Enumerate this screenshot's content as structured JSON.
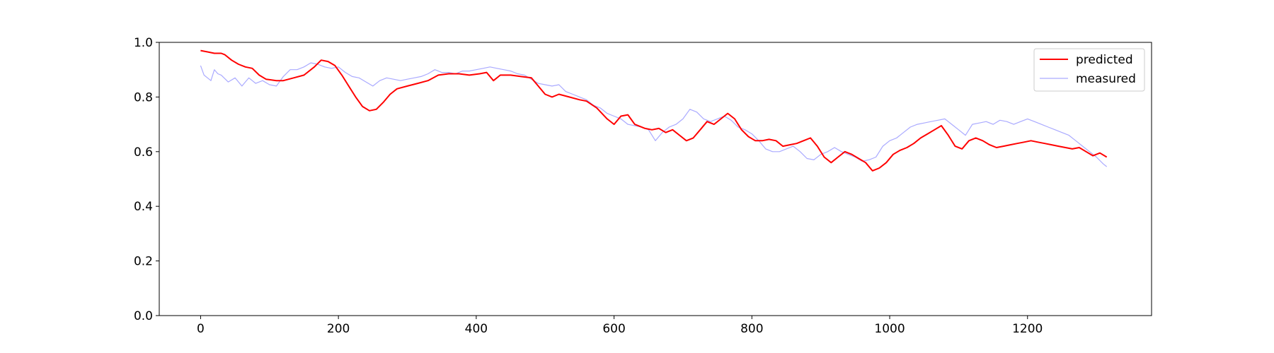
{
  "chart_data": {
    "type": "line",
    "title": "",
    "xlabel": "",
    "ylabel": "",
    "xlim": [
      -60,
      1380
    ],
    "ylim": [
      0.0,
      1.0
    ],
    "xticks": [
      0,
      200,
      400,
      600,
      800,
      1000,
      1200
    ],
    "yticks": [
      0.0,
      0.2,
      0.4,
      0.6,
      0.8,
      1.0
    ],
    "xtick_labels": [
      "0",
      "200",
      "400",
      "600",
      "800",
      "1000",
      "1200"
    ],
    "ytick_labels": [
      "0.0",
      "0.2",
      "0.4",
      "0.6",
      "0.8",
      "1.0"
    ],
    "grid": false,
    "legend_position": "top-right",
    "series": [
      {
        "name": "predicted",
        "color": "#ff0000",
        "x": [
          0,
          10,
          20,
          30,
          35,
          45,
          55,
          65,
          75,
          85,
          95,
          110,
          120,
          135,
          150,
          165,
          175,
          185,
          195,
          205,
          215,
          225,
          235,
          245,
          255,
          265,
          275,
          285,
          300,
          315,
          330,
          345,
          360,
          375,
          390,
          405,
          415,
          425,
          435,
          450,
          465,
          480,
          490,
          500,
          510,
          520,
          535,
          550,
          560,
          575,
          590,
          600,
          610,
          620,
          630,
          645,
          655,
          665,
          675,
          685,
          695,
          705,
          715,
          725,
          735,
          745,
          755,
          765,
          775,
          785,
          795,
          805,
          815,
          825,
          835,
          845,
          855,
          865,
          875,
          885,
          895,
          905,
          915,
          925,
          935,
          945,
          955,
          965,
          975,
          985,
          995,
          1005,
          1015,
          1025,
          1035,
          1045,
          1055,
          1065,
          1075,
          1085,
          1095,
          1105,
          1115,
          1125,
          1135,
          1145,
          1155,
          1165,
          1175,
          1185,
          1195,
          1205,
          1215,
          1225,
          1235,
          1245,
          1255,
          1265,
          1275,
          1285,
          1295,
          1305,
          1315
        ],
        "y": [
          0.97,
          0.965,
          0.96,
          0.96,
          0.955,
          0.935,
          0.92,
          0.91,
          0.905,
          0.88,
          0.865,
          0.86,
          0.86,
          0.87,
          0.88,
          0.91,
          0.935,
          0.93,
          0.915,
          0.88,
          0.84,
          0.8,
          0.765,
          0.75,
          0.755,
          0.78,
          0.81,
          0.83,
          0.84,
          0.85,
          0.86,
          0.88,
          0.885,
          0.885,
          0.88,
          0.885,
          0.89,
          0.86,
          0.88,
          0.88,
          0.875,
          0.87,
          0.84,
          0.81,
          0.8,
          0.81,
          0.8,
          0.79,
          0.785,
          0.76,
          0.72,
          0.7,
          0.73,
          0.735,
          0.7,
          0.685,
          0.68,
          0.685,
          0.67,
          0.68,
          0.66,
          0.64,
          0.65,
          0.68,
          0.71,
          0.7,
          0.72,
          0.74,
          0.72,
          0.68,
          0.655,
          0.64,
          0.64,
          0.645,
          0.64,
          0.62,
          0.625,
          0.63,
          0.64,
          0.65,
          0.62,
          0.58,
          0.56,
          0.58,
          0.6,
          0.59,
          0.575,
          0.56,
          0.53,
          0.54,
          0.56,
          0.59,
          0.605,
          0.615,
          0.63,
          0.65,
          0.665,
          0.68,
          0.695,
          0.66,
          0.62,
          0.61,
          0.64,
          0.65,
          0.64,
          0.625,
          0.615,
          0.62,
          0.625,
          0.63,
          0.635,
          0.64,
          0.635,
          0.63,
          0.625,
          0.62,
          0.615,
          0.61,
          0.615,
          0.6,
          0.585,
          0.595,
          0.58
        ]
      },
      {
        "name": "measured",
        "color": "#aaaaff",
        "x": [
          0,
          5,
          10,
          15,
          20,
          25,
          30,
          40,
          50,
          60,
          70,
          80,
          90,
          100,
          110,
          120,
          130,
          140,
          150,
          160,
          170,
          180,
          190,
          200,
          210,
          220,
          230,
          240,
          250,
          260,
          270,
          280,
          290,
          300,
          310,
          320,
          330,
          340,
          350,
          360,
          370,
          380,
          390,
          400,
          410,
          420,
          430,
          440,
          450,
          460,
          470,
          480,
          490,
          500,
          510,
          520,
          530,
          540,
          550,
          560,
          570,
          580,
          590,
          600,
          610,
          620,
          630,
          640,
          650,
          660,
          670,
          680,
          690,
          700,
          710,
          720,
          730,
          740,
          750,
          760,
          770,
          780,
          790,
          800,
          810,
          820,
          830,
          840,
          850,
          860,
          870,
          880,
          890,
          900,
          910,
          920,
          930,
          940,
          950,
          960,
          970,
          980,
          990,
          1000,
          1010,
          1020,
          1030,
          1040,
          1050,
          1060,
          1070,
          1080,
          1090,
          1100,
          1110,
          1120,
          1130,
          1140,
          1150,
          1160,
          1170,
          1180,
          1190,
          1200,
          1210,
          1220,
          1230,
          1240,
          1250,
          1260,
          1270,
          1280,
          1290,
          1300,
          1310,
          1315
        ],
        "y": [
          0.915,
          0.88,
          0.87,
          0.86,
          0.9,
          0.885,
          0.88,
          0.855,
          0.87,
          0.84,
          0.87,
          0.85,
          0.86,
          0.845,
          0.84,
          0.875,
          0.9,
          0.9,
          0.91,
          0.925,
          0.92,
          0.91,
          0.905,
          0.91,
          0.89,
          0.875,
          0.87,
          0.855,
          0.84,
          0.86,
          0.87,
          0.865,
          0.86,
          0.865,
          0.87,
          0.875,
          0.885,
          0.9,
          0.89,
          0.89,
          0.885,
          0.895,
          0.895,
          0.9,
          0.905,
          0.91,
          0.905,
          0.9,
          0.895,
          0.885,
          0.88,
          0.865,
          0.85,
          0.845,
          0.84,
          0.845,
          0.82,
          0.81,
          0.8,
          0.79,
          0.77,
          0.76,
          0.74,
          0.73,
          0.72,
          0.7,
          0.695,
          0.69,
          0.68,
          0.64,
          0.67,
          0.69,
          0.7,
          0.72,
          0.755,
          0.745,
          0.72,
          0.71,
          0.72,
          0.73,
          0.715,
          0.69,
          0.68,
          0.665,
          0.64,
          0.61,
          0.6,
          0.6,
          0.61,
          0.62,
          0.6,
          0.575,
          0.57,
          0.59,
          0.6,
          0.615,
          0.6,
          0.59,
          0.58,
          0.565,
          0.57,
          0.58,
          0.62,
          0.64,
          0.65,
          0.67,
          0.69,
          0.7,
          0.705,
          0.71,
          0.715,
          0.72,
          0.7,
          0.68,
          0.66,
          0.7,
          0.705,
          0.71,
          0.7,
          0.715,
          0.71,
          0.7,
          0.71,
          0.72,
          0.71,
          0.7,
          0.69,
          0.68,
          0.67,
          0.66,
          0.64,
          0.62,
          0.6,
          0.58,
          0.555,
          0.545
        ]
      }
    ]
  }
}
